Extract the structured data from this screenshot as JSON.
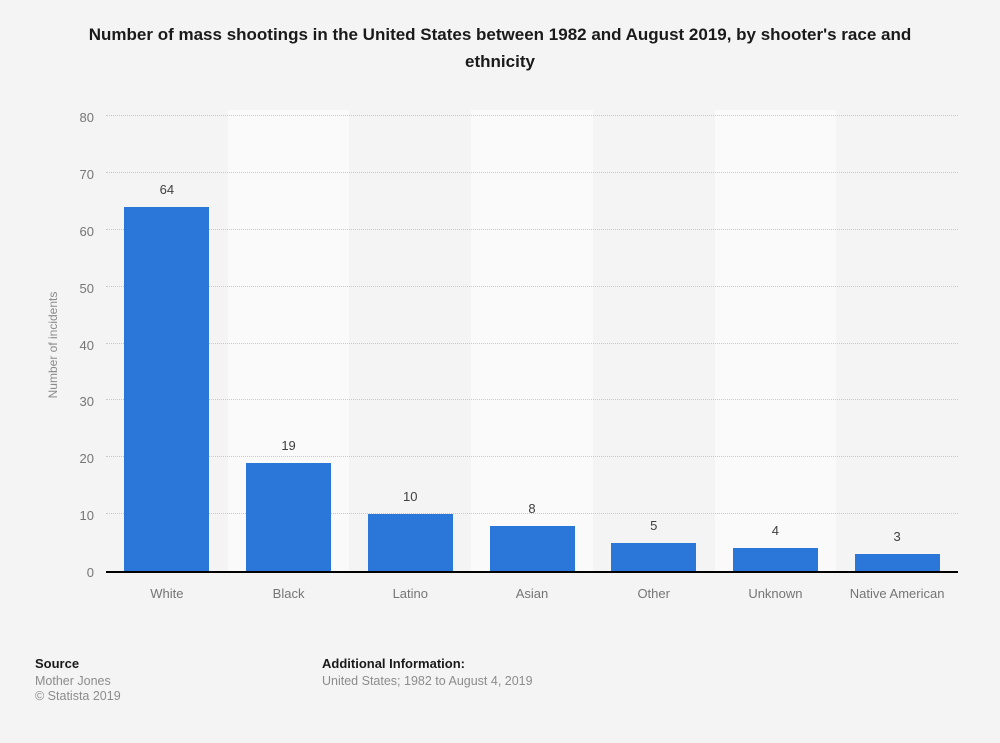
{
  "title": "Number of mass shootings in the United States between 1982 and August 2019, by shooter's race and ethnicity",
  "chart_data": {
    "type": "bar",
    "categories": [
      "White",
      "Black",
      "Latino",
      "Asian",
      "Other",
      "Unknown",
      "Native American"
    ],
    "values": [
      64,
      19,
      10,
      8,
      5,
      4,
      3
    ],
    "title": "Number of mass shootings in the United States between 1982 and August 2019, by shooter's race and ethnicity",
    "xlabel": "",
    "ylabel": "Number of incidents",
    "ylim": [
      0,
      80
    ],
    "ytick_step": 10,
    "yticks": [
      0,
      10,
      20,
      30,
      40,
      50,
      60,
      70,
      80
    ],
    "grid": "horizontal-dotted",
    "legend": "none",
    "bar_color": "#2b76d9",
    "background_color": "#f4f4f4",
    "alt_band_color": "#fafafa",
    "axis_line_color": "#000000"
  },
  "footer": {
    "source_label": "Source",
    "source_name": "Mother Jones",
    "copyright": "© Statista 2019",
    "additional_label": "Additional Information:",
    "additional_text": "United States; 1982 to August 4, 2019"
  }
}
